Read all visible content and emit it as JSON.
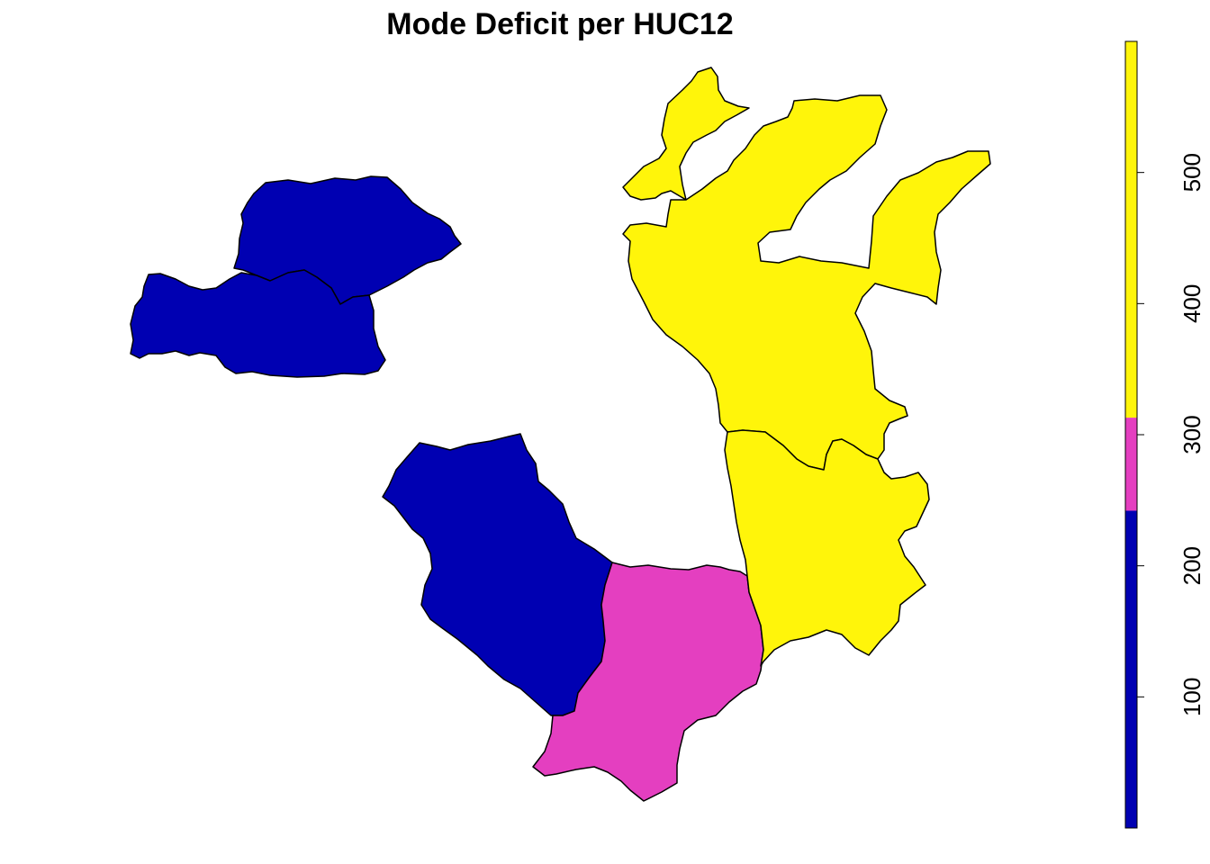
{
  "title": "Mode Deficit per HUC12",
  "regions": [
    {
      "id": "huc-a",
      "class": "low"
    },
    {
      "id": "huc-b",
      "class": "low"
    },
    {
      "id": "huc-c",
      "class": "low"
    },
    {
      "id": "huc-d",
      "class": "mid"
    },
    {
      "id": "huc-e",
      "class": "high"
    },
    {
      "id": "huc-f",
      "class": "high"
    },
    {
      "id": "huc-g",
      "class": "high"
    }
  ],
  "legend": {
    "range": [
      0,
      600
    ],
    "bins": [
      {
        "from": 0,
        "to": 242,
        "color": "#0000B2"
      },
      {
        "from": 242,
        "to": 313,
        "color": "#E43FC0"
      },
      {
        "from": 313,
        "to": 600,
        "color": "#FFF50A"
      }
    ],
    "ticks": [
      {
        "value": 100,
        "label": "100"
      },
      {
        "value": 200,
        "label": "200"
      },
      {
        "value": 300,
        "label": "300"
      },
      {
        "value": 400,
        "label": "400"
      },
      {
        "value": 500,
        "label": "500"
      }
    ]
  },
  "colors": {
    "low": "#0000B2",
    "mid": "#E43FC0",
    "high": "#FFF50A"
  }
}
